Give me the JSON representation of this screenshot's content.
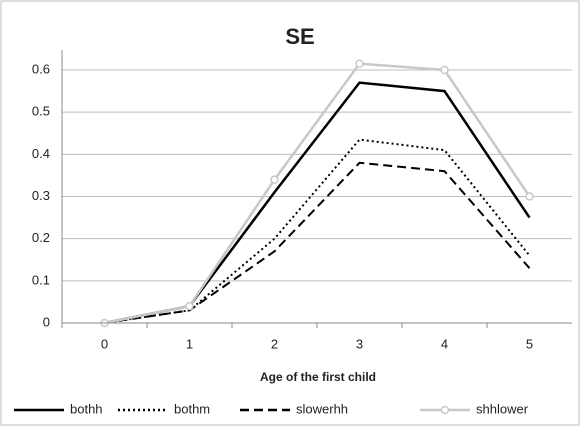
{
  "chart_data": {
    "type": "line",
    "title": "SE",
    "x_label": "Age of the first child",
    "categories": [
      "0",
      "1",
      "2",
      "3",
      "4",
      "5"
    ],
    "series": [
      {
        "name": "bothh",
        "color": "#000000",
        "dash": "solid",
        "values": [
          0,
          0.04,
          0.31,
          0.57,
          0.55,
          0.25
        ]
      },
      {
        "name": "bothm",
        "color": "#000000",
        "dash": "dotted",
        "values": [
          0,
          0.03,
          0.2,
          0.435,
          0.41,
          0.16
        ]
      },
      {
        "name": "slowerhh",
        "color": "#000000",
        "dash": "dashed",
        "values": [
          0,
          0.03,
          0.17,
          0.38,
          0.36,
          0.13
        ]
      },
      {
        "name": "shhlower",
        "color": "#c8c8c8",
        "dash": "solid",
        "marker": "circle",
        "values": [
          0,
          0.04,
          0.34,
          0.615,
          0.6,
          0.3
        ]
      }
    ],
    "ylim": [
      0,
      0.6
    ],
    "yticks": [
      0,
      0.1,
      0.2,
      0.3,
      0.4,
      0.5,
      0.6
    ],
    "grid": true,
    "legend": "bottom"
  }
}
